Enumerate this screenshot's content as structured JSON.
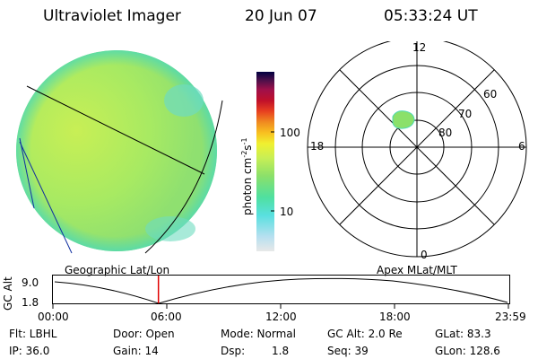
{
  "header": {
    "instrument": "Ultraviolet Imager",
    "date": "20 Jun 07",
    "time": "05:33:24 UT"
  },
  "left_panel": {
    "caption": "Geographic Lat/Lon"
  },
  "right_panel": {
    "caption": "Apex MLat/MLT",
    "mlt_labels": {
      "top": "12",
      "left": "18",
      "right": "6",
      "bottom": "0"
    },
    "mlat_labels": [
      "60",
      "70",
      "80"
    ]
  },
  "colorbar": {
    "unit_label": "photon cm",
    "exp1": "-2",
    "s_label": "s",
    "exp2": "-1",
    "tick_labels": [
      "100",
      "10"
    ]
  },
  "altitude_plot": {
    "ylabel": "GC Alt",
    "ytick_labels": [
      "9.0",
      "1.8"
    ],
    "xtick_labels": [
      "00:00",
      "06:00",
      "12:00",
      "18:00",
      "23:59"
    ],
    "current_time_hours": 5.56,
    "colors": {
      "marker": "#e00000",
      "line": "#000000"
    }
  },
  "info": {
    "flt": "Flt: LBHL",
    "door": "Door: Open",
    "mode": "Mode: Normal",
    "gcalt": "GC Alt: 2.0 Re",
    "glat": "GLat: 83.3",
    "ip": "IP: 36.0",
    "gain": "Gain: 14",
    "dsp_label": "Dsp:",
    "dsp_value": "1.8",
    "seq": "Seq: 39",
    "glon": "GLon: 128.6"
  },
  "colors": {
    "disk_base": "#9fe86a",
    "disk_bright": "#c8ef55",
    "disk_cyan": "#4fd9b4",
    "colorbar": [
      "#e8e8e8",
      "#b8e0f0",
      "#59e0e0",
      "#4fe0a0",
      "#8be06a",
      "#c8ef55",
      "#f0f030",
      "#f8c020",
      "#f08a20",
      "#e84020",
      "#c0102a",
      "#a0104a",
      "#50104a",
      "#000040"
    ]
  }
}
